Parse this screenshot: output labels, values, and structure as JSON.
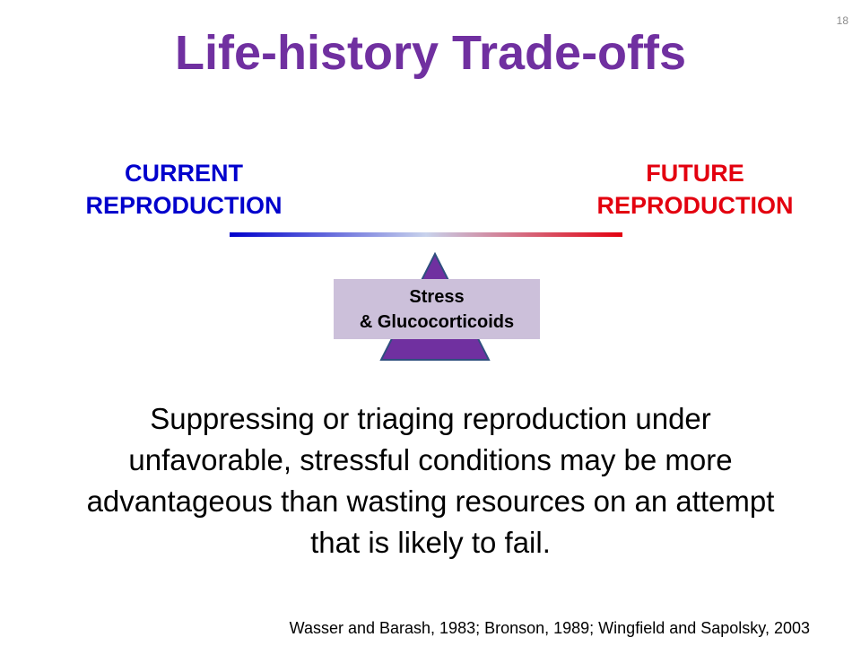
{
  "slide": {
    "number": "18",
    "title": "Life-history Trade-offs"
  },
  "balance": {
    "left_label": [
      "CURRENT",
      "REPRODUCTION"
    ],
    "right_label": [
      "FUTURE",
      "REPRODUCTION"
    ],
    "fulcrum_label": [
      "Stress",
      "& Glucocorticoids"
    ],
    "colors": {
      "left": "#0000cc",
      "middle": "#c8d2ec",
      "right": "#e3000f",
      "fulcrum": "#7030a0",
      "fulcrum_label_bg": "#ccc0da",
      "title": "#7030a0"
    }
  },
  "body": {
    "lines": [
      "Suppressing or triaging reproduction under",
      "unfavorable, stressful conditions may be more",
      "advantageous than wasting resources on an attempt",
      "that is likely to fail."
    ]
  },
  "citation": "Wasser and Barash, 1983; Bronson, 1989; Wingfield and Sapolsky, 2003"
}
